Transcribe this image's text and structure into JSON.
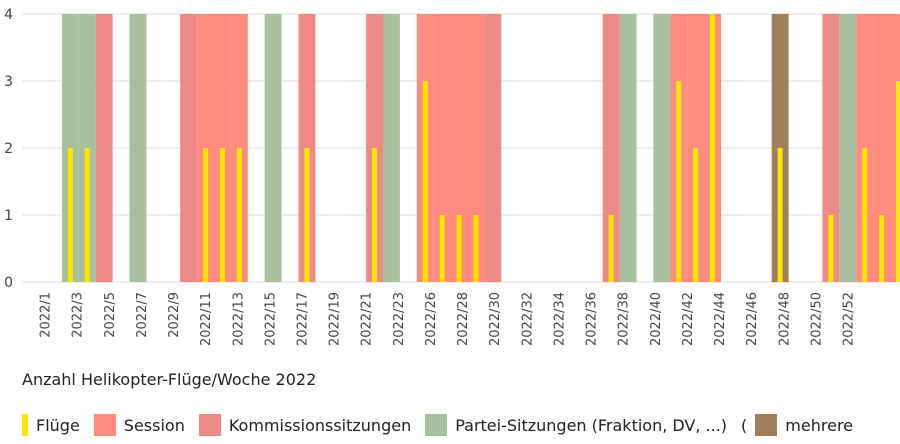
{
  "chart_data": {
    "type": "bar",
    "title": "",
    "caption": "Anzahl Helikopter-Flüge/Woche 2022",
    "xlabel": "",
    "ylabel": "",
    "ylim": [
      0,
      4
    ],
    "yticks": [
      0,
      1,
      2,
      3,
      4
    ],
    "grid": true,
    "legend_position": "bottom",
    "xticks": [
      "2022/1",
      "2022/3",
      "2022/5",
      "2022/7",
      "2022/9",
      "2022/11",
      "2022/13",
      "2022/15",
      "2022/17",
      "2022/19",
      "2022/21",
      "2022/23",
      "2022/26",
      "2022/28",
      "2022/30",
      "2022/32",
      "2022/34",
      "2022/36",
      "2022/38",
      "2022/40",
      "2022/42",
      "2022/44",
      "2022/46",
      "2022/48",
      "2022/50",
      "2022/52"
    ],
    "series": [
      {
        "name": "Flüge",
        "color": "#FFE600",
        "points": [
          {
            "week": 1,
            "value": 2
          },
          {
            "week": 2,
            "value": 2
          },
          {
            "week": 9,
            "value": 2
          },
          {
            "week": 10,
            "value": 2
          },
          {
            "week": 11,
            "value": 2
          },
          {
            "week": 15,
            "value": 2
          },
          {
            "week": 19,
            "value": 2
          },
          {
            "week": 22,
            "value": 3
          },
          {
            "week": 23,
            "value": 1
          },
          {
            "week": 24,
            "value": 1
          },
          {
            "week": 25,
            "value": 1
          },
          {
            "week": 33,
            "value": 1
          },
          {
            "week": 37,
            "value": 3
          },
          {
            "week": 38,
            "value": 2
          },
          {
            "week": 39,
            "value": 4
          },
          {
            "week": 43,
            "value": 2
          },
          {
            "week": 46,
            "value": 1
          },
          {
            "week": 48,
            "value": 2
          },
          {
            "week": 49,
            "value": 1
          },
          {
            "week": 50,
            "value": 3
          }
        ]
      },
      {
        "name": "Session",
        "color": "#FF8A80",
        "weeks": [
          9,
          10,
          11,
          22,
          23,
          24,
          25,
          37,
          38,
          39,
          48,
          49,
          50
        ]
      },
      {
        "name": "Kommissionssitzungen",
        "color": "#EE8A85",
        "weeks": [
          3,
          8,
          15,
          19,
          26,
          33,
          46
        ]
      },
      {
        "name": "Partei-Sitzungen (Fraktion, DV, ...)",
        "color": "#A8BFA0",
        "weeks": [
          1,
          2,
          5,
          13,
          20,
          34,
          36,
          47
        ]
      },
      {
        "name": "mehrere",
        "color": "#A07E5A",
        "weeks": [
          43
        ]
      }
    ],
    "legend_open_paren": "("
  }
}
